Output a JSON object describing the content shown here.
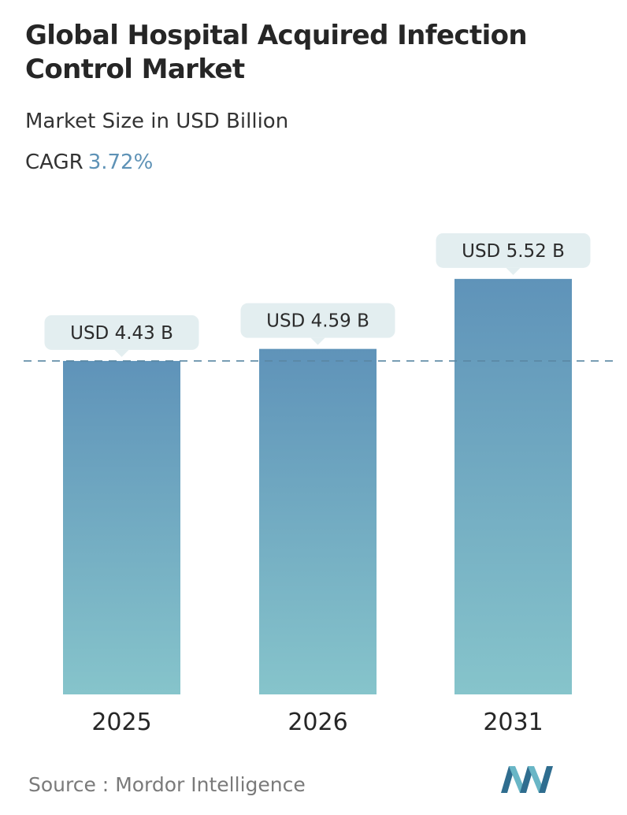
{
  "header": {
    "title": "Global Hospital Acquired Infection Control Market",
    "subtitle": "Market Size in USD Billion",
    "cagr_label": "CAGR",
    "cagr_value": "3.72%"
  },
  "footer": {
    "source_label": "Source :",
    "source_name": "Mordor Intelligence",
    "logo_icon": "mordor-intelligence-logo-icon"
  },
  "colors": {
    "bar_top": "#5f93b9",
    "bar_bottom": "#86c4cb",
    "label_bg": "#e3eef0",
    "reference_line": "#5a87a3",
    "cagr_accent": "#5e92b6",
    "logo_dark": "#2f6d8f",
    "logo_light": "#69b6c6"
  },
  "chart_data": {
    "type": "bar",
    "categories": [
      "2025",
      "2026",
      "2031"
    ],
    "values": [
      4.43,
      4.59,
      5.52
    ],
    "data_labels": [
      "USD 4.43 B",
      "USD 4.59 B",
      "USD 5.52 B"
    ],
    "unit": "USD Billion",
    "xlabel": "",
    "ylabel": "",
    "ylim": [
      0,
      5.52
    ],
    "reference_line": 4.43,
    "grid": false,
    "legend": "none"
  }
}
